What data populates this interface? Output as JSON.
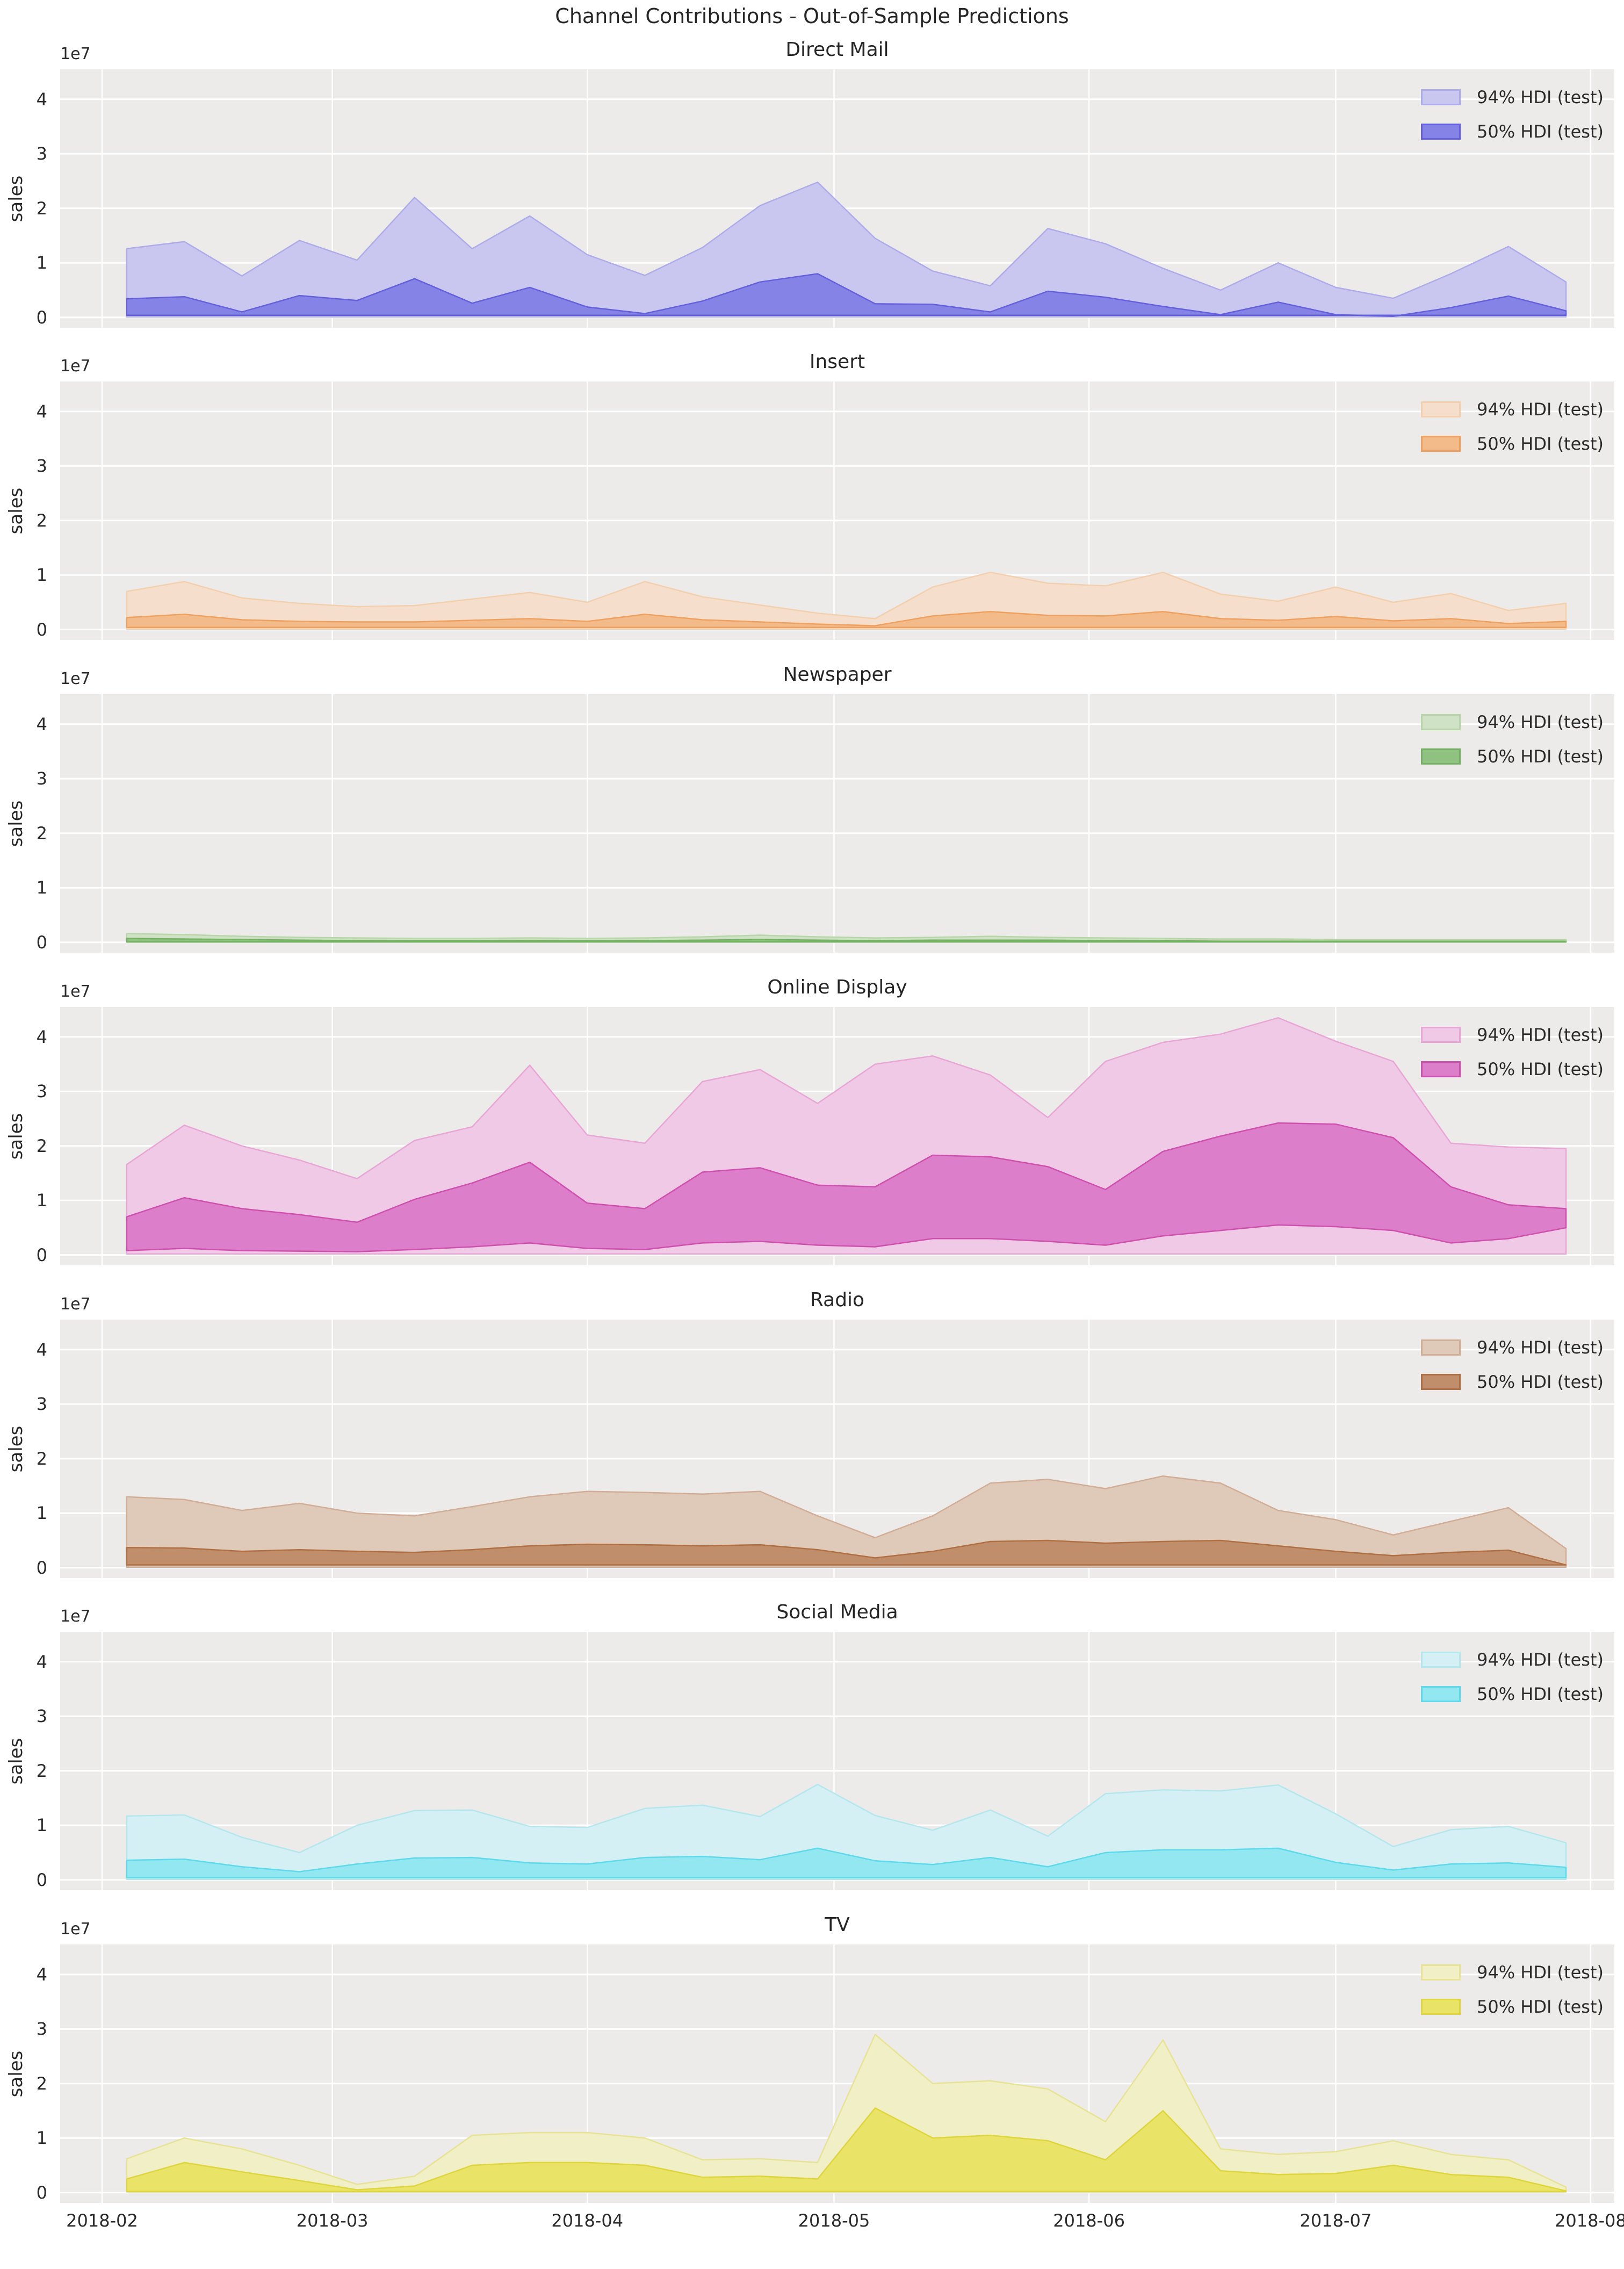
{
  "figure": {
    "title": "Channel Contributions - Out-of-Sample Predictions",
    "y_axis_label": "sales",
    "y_offset_label": "1e7",
    "y_tick_labels": [
      "0",
      "1",
      "2",
      "3",
      "4"
    ],
    "x_tick_labels": [
      "2018-02",
      "2018-03",
      "2018-04",
      "2018-05",
      "2018-06",
      "2018-07",
      "2018-08"
    ],
    "background_color": "#ffffff",
    "axes_background_color": "#ecebea",
    "grid_color": "#ffffff",
    "text_color": "#2b2b2b"
  },
  "legend": {
    "labels": [
      "94% HDI (test)",
      "50% HDI (test)"
    ]
  },
  "chart_data": {
    "type": "area",
    "title": "Channel Contributions - Out-of-Sample Predictions",
    "ylabel": "sales",
    "values_unit": "1e7 (sales)",
    "grid": true,
    "legend_position": "upper right",
    "x_axis_ticks": [
      "2018-02",
      "2018-03",
      "2018-04",
      "2018-05",
      "2018-06",
      "2018-07",
      "2018-08"
    ],
    "y_axis_ticks_1e7": [
      0,
      1,
      2,
      3,
      4
    ],
    "y_axis_range_1e7": [
      -0.19,
      4.55
    ],
    "x": [
      "2018-02-04",
      "2018-02-11",
      "2018-02-18",
      "2018-02-25",
      "2018-03-04",
      "2018-03-11",
      "2018-03-18",
      "2018-03-25",
      "2018-04-01",
      "2018-04-08",
      "2018-04-15",
      "2018-04-22",
      "2018-04-29",
      "2018-05-06",
      "2018-05-13",
      "2018-05-20",
      "2018-05-27",
      "2018-06-03",
      "2018-06-10",
      "2018-06-17",
      "2018-06-24",
      "2018-07-01",
      "2018-07-08",
      "2018-07-15",
      "2018-07-22",
      "2018-07-29"
    ],
    "subplots": [
      {
        "key": "direct-mail",
        "title": "Direct Mail",
        "colors": {
          "light": "#c9c7f0",
          "light_edge": "#aeabe9",
          "dark": "#8683e6",
          "dark_edge": "#6460dc"
        },
        "hdi94": {
          "lower": 0.01,
          "upper": [
            1.26,
            1.39,
            0.76,
            1.41,
            1.05,
            2.2,
            1.26,
            1.86,
            1.15,
            0.77,
            1.28,
            2.05,
            2.48,
            1.45,
            0.85,
            0.58,
            1.63,
            1.35,
            0.9,
            0.5,
            1.0,
            0.55,
            0.35,
            0.8,
            1.3,
            0.65
          ]
        },
        "hdi50": {
          "lower": 0.04,
          "upper": [
            0.34,
            0.38,
            0.1,
            0.4,
            0.31,
            0.71,
            0.26,
            0.55,
            0.19,
            0.07,
            0.3,
            0.65,
            0.8,
            0.25,
            0.24,
            0.1,
            0.48,
            0.37,
            0.2,
            0.05,
            0.28,
            0.05,
            0.02,
            0.18,
            0.39,
            0.12
          ]
        }
      },
      {
        "key": "insert",
        "title": "Insert",
        "colors": {
          "light": "#f5dfcc",
          "light_edge": "#f3cfae",
          "dark": "#f3bb8a",
          "dark_edge": "#efa05f"
        },
        "hdi94": {
          "lower": 0.01,
          "upper": [
            0.7,
            0.88,
            0.58,
            0.48,
            0.42,
            0.44,
            0.56,
            0.68,
            0.5,
            0.88,
            0.6,
            0.45,
            0.3,
            0.2,
            0.78,
            1.05,
            0.85,
            0.8,
            1.05,
            0.65,
            0.52,
            0.78,
            0.5,
            0.66,
            0.35,
            0.48
          ]
        },
        "hdi50": {
          "lower": 0.04,
          "upper": [
            0.22,
            0.28,
            0.18,
            0.15,
            0.14,
            0.14,
            0.17,
            0.2,
            0.15,
            0.28,
            0.18,
            0.14,
            0.1,
            0.07,
            0.25,
            0.33,
            0.26,
            0.25,
            0.33,
            0.2,
            0.17,
            0.24,
            0.16,
            0.2,
            0.11,
            0.15
          ]
        }
      },
      {
        "key": "newspaper",
        "title": "Newspaper",
        "colors": {
          "light": "#cfe2c5",
          "light_edge": "#b7d6a8",
          "dark": "#8fc180",
          "dark_edge": "#74b163"
        },
        "hdi94": {
          "lower": 0.0,
          "upper": [
            0.16,
            0.14,
            0.11,
            0.09,
            0.08,
            0.07,
            0.07,
            0.08,
            0.07,
            0.08,
            0.1,
            0.13,
            0.1,
            0.08,
            0.09,
            0.11,
            0.09,
            0.08,
            0.07,
            0.06,
            0.06,
            0.05,
            0.05,
            0.05,
            0.05,
            0.05
          ]
        },
        "hdi50": {
          "lower": 0.01,
          "upper": [
            0.07,
            0.06,
            0.05,
            0.04,
            0.03,
            0.03,
            0.03,
            0.03,
            0.03,
            0.03,
            0.04,
            0.05,
            0.04,
            0.03,
            0.04,
            0.04,
            0.04,
            0.03,
            0.03,
            0.02,
            0.02,
            0.02,
            0.02,
            0.02,
            0.02,
            0.02
          ]
        }
      },
      {
        "key": "online-display",
        "title": "Online Display",
        "colors": {
          "light": "#efc9e5",
          "light_edge": "#e8a5d5",
          "dark": "#dc7ec9",
          "dark_edge": "#cf4fae"
        },
        "hdi94": {
          "lower": 0.02,
          "upper": [
            1.66,
            2.38,
            2.0,
            1.74,
            1.4,
            2.1,
            2.35,
            3.48,
            2.2,
            2.05,
            3.18,
            3.4,
            2.78,
            3.5,
            3.65,
            3.3,
            2.52,
            3.55,
            3.9,
            4.05,
            4.35,
            3.92,
            3.55,
            2.05,
            1.98,
            1.95
          ]
        },
        "hdi50": {
          "lower": [
            0.08,
            0.12,
            0.08,
            0.07,
            0.06,
            0.1,
            0.15,
            0.22,
            0.12,
            0.1,
            0.22,
            0.25,
            0.18,
            0.15,
            0.3,
            0.3,
            0.25,
            0.18,
            0.35,
            0.45,
            0.55,
            0.52,
            0.45,
            0.22,
            0.3,
            0.5
          ],
          "upper": [
            0.7,
            1.05,
            0.85,
            0.74,
            0.6,
            1.02,
            1.32,
            1.7,
            0.95,
            0.85,
            1.52,
            1.6,
            1.28,
            1.25,
            1.83,
            1.8,
            1.62,
            1.2,
            1.9,
            2.18,
            2.42,
            2.4,
            2.15,
            1.25,
            0.92,
            0.85
          ]
        }
      },
      {
        "key": "radio",
        "title": "Radio",
        "colors": {
          "light": "#dfcaba",
          "light_edge": "#d2ad95",
          "dark": "#c18e6b",
          "dark_edge": "#b06f43"
        },
        "hdi94": {
          "lower": 0.01,
          "upper": [
            1.3,
            1.25,
            1.05,
            1.18,
            1.0,
            0.95,
            1.12,
            1.3,
            1.4,
            1.38,
            1.35,
            1.4,
            0.95,
            0.55,
            0.95,
            1.55,
            1.62,
            1.45,
            1.68,
            1.55,
            1.05,
            0.88,
            0.6,
            0.85,
            1.1,
            0.35
          ]
        },
        "hdi50": {
          "lower": 0.05,
          "upper": [
            0.37,
            0.36,
            0.3,
            0.33,
            0.3,
            0.28,
            0.33,
            0.4,
            0.43,
            0.42,
            0.4,
            0.42,
            0.33,
            0.18,
            0.3,
            0.48,
            0.5,
            0.45,
            0.48,
            0.5,
            0.4,
            0.3,
            0.22,
            0.28,
            0.32,
            0.05
          ]
        }
      },
      {
        "key": "social-media",
        "title": "Social Media",
        "colors": {
          "light": "#d4f0f4",
          "light_edge": "#b4e6ee",
          "dark": "#93e7f1",
          "dark_edge": "#5cd9ea"
        },
        "hdi94": {
          "lower": 0.01,
          "upper": [
            1.17,
            1.19,
            0.78,
            0.5,
            1.0,
            1.27,
            1.28,
            0.98,
            0.96,
            1.31,
            1.37,
            1.16,
            1.75,
            1.18,
            0.91,
            1.28,
            0.8,
            1.58,
            1.65,
            1.63,
            1.74,
            1.21,
            0.61,
            0.92,
            0.98,
            0.68
          ]
        },
        "hdi50": {
          "lower": 0.04,
          "upper": [
            0.36,
            0.38,
            0.24,
            0.15,
            0.29,
            0.4,
            0.41,
            0.31,
            0.29,
            0.41,
            0.43,
            0.37,
            0.58,
            0.35,
            0.28,
            0.41,
            0.24,
            0.5,
            0.55,
            0.55,
            0.58,
            0.32,
            0.18,
            0.29,
            0.31,
            0.23
          ]
        }
      },
      {
        "key": "tv",
        "title": "TV",
        "colors": {
          "light": "#f1efc6",
          "light_edge": "#e8e394",
          "dark": "#e9e467",
          "dark_edge": "#ded43c"
        },
        "hdi94": {
          "lower": 0.01,
          "upper": [
            0.62,
            1.0,
            0.8,
            0.5,
            0.15,
            0.3,
            1.05,
            1.1,
            1.1,
            1.0,
            0.6,
            0.62,
            0.55,
            2.9,
            2.0,
            2.05,
            1.9,
            1.3,
            2.8,
            0.8,
            0.7,
            0.75,
            0.95,
            0.7,
            0.6,
            0.1
          ]
        },
        "hdi50": {
          "lower": 0.02,
          "upper": [
            0.25,
            0.55,
            0.38,
            0.22,
            0.05,
            0.12,
            0.5,
            0.55,
            0.55,
            0.5,
            0.28,
            0.3,
            0.25,
            1.55,
            1.0,
            1.05,
            0.95,
            0.6,
            1.5,
            0.4,
            0.33,
            0.35,
            0.5,
            0.33,
            0.28,
            0.03
          ]
        }
      }
    ]
  }
}
